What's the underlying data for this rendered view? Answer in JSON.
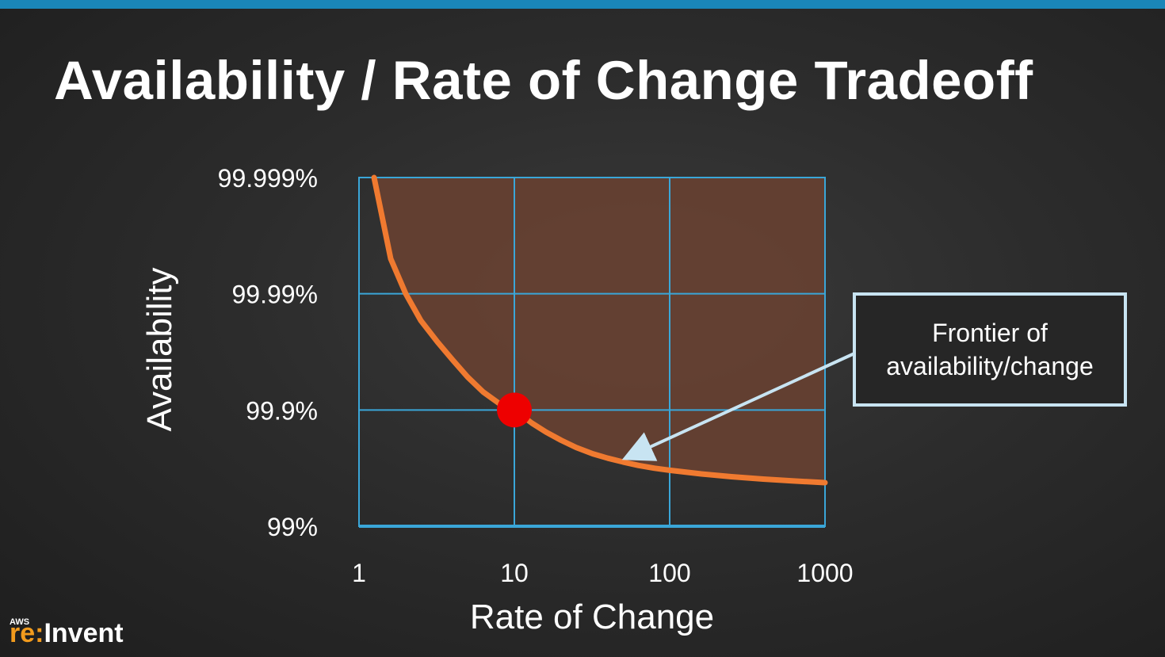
{
  "slide": {
    "title": "Availability / Rate of Change Tradeoff",
    "callout": {
      "line1": "Frontier of",
      "line2": "availability/change"
    },
    "logo": {
      "small": "AWS",
      "part1": "re:",
      "part2": "Invent"
    }
  },
  "colors": {
    "accent_bar": "#1a86b8",
    "grid": "#3aa6d8",
    "curve": "#f07a30",
    "fill": "#6b4231",
    "point": "#ee0000",
    "callout_border": "#c8e4f2"
  },
  "chart_data": {
    "type": "line",
    "title": "Availability / Rate of Change Tradeoff",
    "xlabel": "Rate of Change",
    "ylabel": "Availability",
    "x_scale": "log",
    "y_scale": "nines",
    "xlim": [
      1,
      1000
    ],
    "ylim": [
      99,
      99.999
    ],
    "x_ticks": [
      "1",
      "10",
      "100",
      "1000"
    ],
    "y_ticks": [
      "99%",
      "99.9%",
      "99.99%",
      "99.999%"
    ],
    "grid": true,
    "series": [
      {
        "x": [
          1.25,
          1.6,
          2,
          2.5,
          3.2,
          4,
          5,
          6.3,
          8,
          10,
          13,
          16,
          20,
          25,
          32,
          40,
          50,
          63,
          80,
          100,
          160,
          250,
          400,
          630,
          1000
        ],
        "y": [
          99.999,
          99.995,
          99.99,
          99.983,
          99.974,
          99.963,
          99.948,
          99.93,
          99.912,
          99.9,
          99.87,
          99.845,
          99.818,
          99.79,
          99.762,
          99.74,
          99.72,
          99.7,
          99.683,
          99.67,
          99.645,
          99.625,
          99.607,
          99.592,
          99.578
        ]
      }
    ],
    "highlight_point": {
      "x": 10,
      "y": 99.9
    },
    "shaded_region": "above frontier",
    "annotation": {
      "text": "Frontier of availability/change",
      "points_to": {
        "x": 50,
        "y": 99.72
      }
    }
  }
}
